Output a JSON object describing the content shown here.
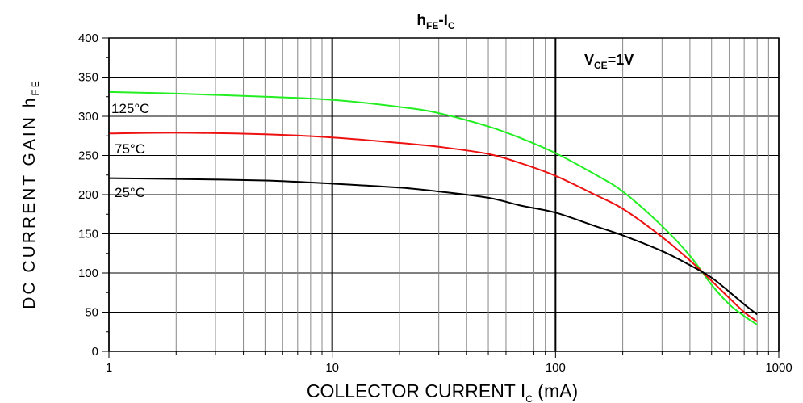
{
  "chart_data": {
    "type": "line",
    "title_main": "h",
    "title_main_sub": "FE",
    "title_sep": "-I",
    "title_sep_sub": "C",
    "xlabel_main": "COLLECTOR CURRENT I",
    "xlabel_sub": "C",
    "xlabel_unit": " (mA)",
    "ylabel_main": "DC CURRENT GAIN h",
    "ylabel_sub": "FE",
    "condition_main": "V",
    "condition_sub": "CE",
    "condition_value": "=1V",
    "x_scale": "log",
    "xlim": [
      1,
      1000
    ],
    "ylim": [
      0,
      400
    ],
    "xticks": [
      1,
      10,
      100,
      1000
    ],
    "xtick_labels": [
      "1",
      "10",
      "100",
      "1000"
    ],
    "yticks": [
      0,
      50,
      100,
      150,
      200,
      250,
      300,
      350,
      400
    ],
    "ytick_labels": [
      "0",
      "50",
      "100",
      "150",
      "200",
      "250",
      "300",
      "350",
      "400"
    ],
    "grid": true,
    "series": [
      {
        "name": "125°C",
        "color": "#22ee22",
        "x": [
          1,
          2,
          5,
          10,
          20,
          30,
          50,
          70,
          100,
          150,
          200,
          300,
          400,
          500,
          600,
          700,
          800
        ],
        "y": [
          331,
          329,
          325,
          321,
          312,
          304,
          287,
          272,
          253,
          226,
          204,
          160,
          122,
          85,
          60,
          45,
          34
        ]
      },
      {
        "name": "75°C",
        "color": "#ee1111",
        "x": [
          1,
          2,
          5,
          10,
          20,
          30,
          50,
          70,
          100,
          150,
          200,
          300,
          400,
          500,
          600,
          700,
          800
        ],
        "y": [
          278,
          279,
          277,
          273,
          266,
          261,
          252,
          240,
          224,
          200,
          182,
          146,
          116,
          90,
          68,
          50,
          38
        ]
      },
      {
        "name": "25°C",
        "color": "#000000",
        "x": [
          1,
          2,
          5,
          10,
          20,
          30,
          50,
          70,
          100,
          150,
          200,
          300,
          400,
          500,
          600,
          700,
          800
        ],
        "y": [
          221,
          220,
          218,
          214,
          209,
          204,
          196,
          186,
          177,
          160,
          148,
          128,
          110,
          94,
          76,
          60,
          47
        ]
      }
    ]
  }
}
